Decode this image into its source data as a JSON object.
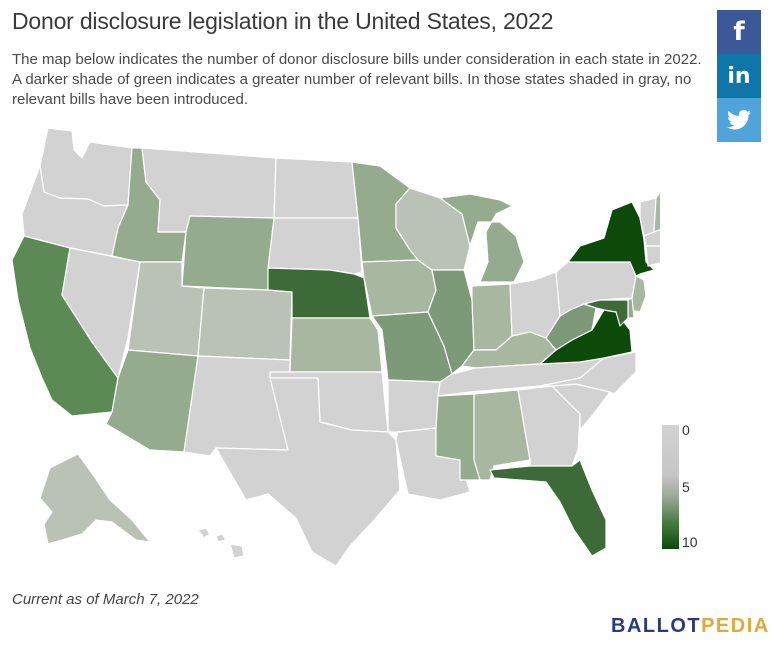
{
  "title": "Donor disclosure legislation in the United States, 2022",
  "subtitle": "The map below indicates the number of donor disclosure bills under consideration in each state in 2022. A darker shade of green indicates a greater number of relevant bills. In those states shaded in gray, no relevant bills have been introduced.",
  "share": {
    "facebook": {
      "label": "f",
      "icon": "facebook-icon"
    },
    "linkedin": {
      "label": "in",
      "icon": "linkedin-icon"
    },
    "twitter": {
      "label": "",
      "icon": "twitter-bird-icon"
    }
  },
  "legend": {
    "labels": [
      "0",
      "5",
      "10"
    ],
    "colors": [
      "#d2d2d2",
      "#c6c6c6",
      "#0c4a0a"
    ]
  },
  "colors": {
    "none": "#d2d2d2",
    "light": "#bac2b5",
    "mid_light": "#a8b8a0",
    "mid": "#95ab8d",
    "mid_dark": "#7c9978",
    "dark": "#5b8a55",
    "darker": "#3c6b37",
    "darkest": "#0c4a0a"
  },
  "states": [
    {
      "id": "WA",
      "level": "none"
    },
    {
      "id": "OR",
      "level": "none"
    },
    {
      "id": "CA",
      "level": "dark"
    },
    {
      "id": "NV",
      "level": "none"
    },
    {
      "id": "ID",
      "level": "mid"
    },
    {
      "id": "MT",
      "level": "none"
    },
    {
      "id": "WY",
      "level": "mid"
    },
    {
      "id": "UT",
      "level": "light"
    },
    {
      "id": "AZ",
      "level": "mid"
    },
    {
      "id": "CO",
      "level": "light"
    },
    {
      "id": "NM",
      "level": "none"
    },
    {
      "id": "ND",
      "level": "none"
    },
    {
      "id": "SD",
      "level": "none"
    },
    {
      "id": "NE",
      "level": "darker"
    },
    {
      "id": "KS",
      "level": "mid_light"
    },
    {
      "id": "OK",
      "level": "none"
    },
    {
      "id": "TX",
      "level": "none"
    },
    {
      "id": "MN",
      "level": "mid"
    },
    {
      "id": "IA",
      "level": "mid_light"
    },
    {
      "id": "MO",
      "level": "mid_dark"
    },
    {
      "id": "AR",
      "level": "none"
    },
    {
      "id": "LA",
      "level": "none"
    },
    {
      "id": "WI",
      "level": "light"
    },
    {
      "id": "IL",
      "level": "mid_dark"
    },
    {
      "id": "MI",
      "level": "mid"
    },
    {
      "id": "IN",
      "level": "mid_light"
    },
    {
      "id": "OH",
      "level": "none"
    },
    {
      "id": "KY",
      "level": "mid_light"
    },
    {
      "id": "TN",
      "level": "none"
    },
    {
      "id": "MS",
      "level": "mid"
    },
    {
      "id": "AL",
      "level": "mid_light"
    },
    {
      "id": "GA",
      "level": "none"
    },
    {
      "id": "FL",
      "level": "darker"
    },
    {
      "id": "SC",
      "level": "none"
    },
    {
      "id": "NC",
      "level": "none"
    },
    {
      "id": "VA",
      "level": "darkest"
    },
    {
      "id": "WV",
      "level": "mid_dark"
    },
    {
      "id": "PA",
      "level": "none"
    },
    {
      "id": "NY",
      "level": "darkest"
    },
    {
      "id": "VT",
      "level": "none"
    },
    {
      "id": "NH",
      "level": "mid_light"
    },
    {
      "id": "ME",
      "level": "mid"
    },
    {
      "id": "MA",
      "level": "none"
    },
    {
      "id": "CT",
      "level": "none"
    },
    {
      "id": "RI",
      "level": "none"
    },
    {
      "id": "NJ",
      "level": "mid_light"
    },
    {
      "id": "DE",
      "level": "mid"
    },
    {
      "id": "MD",
      "level": "darker"
    },
    {
      "id": "AK",
      "level": "light"
    },
    {
      "id": "HI",
      "level": "none"
    }
  ],
  "footnote": "Current as of March 7, 2022",
  "brand": {
    "part1": "BALLOT",
    "part2": "PEDIA",
    "color1": "#2b3a7e",
    "color2": "#e2a83a"
  }
}
